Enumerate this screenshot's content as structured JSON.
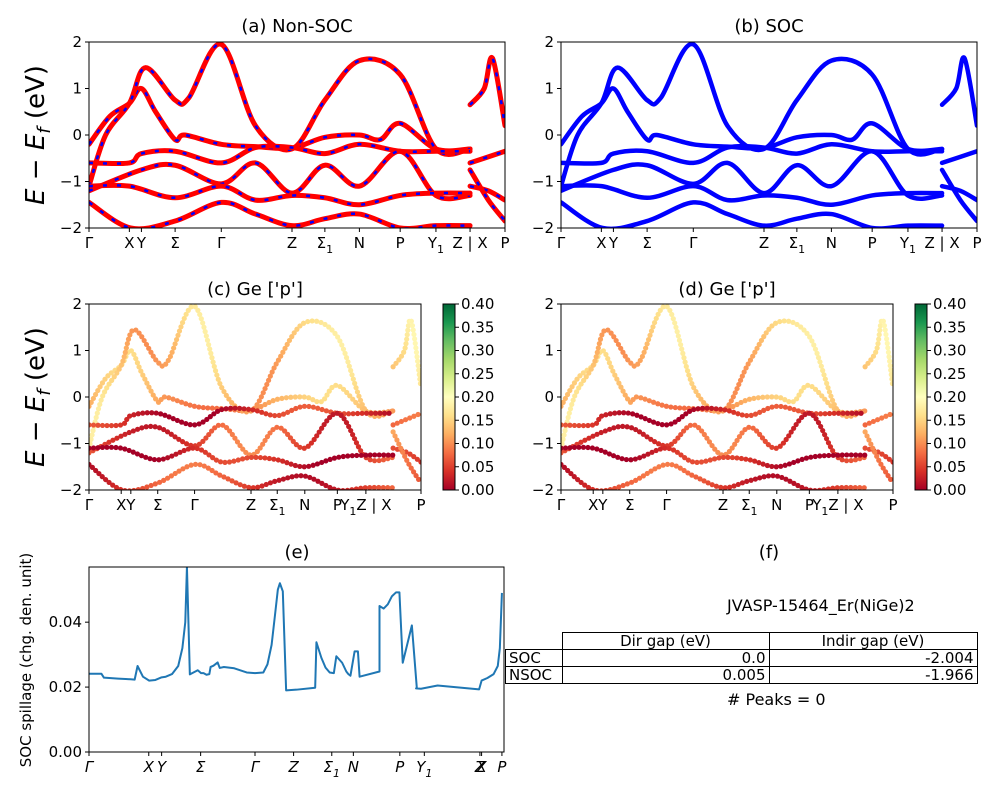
{
  "figure": {
    "ylabel_band": "E − E_f (eV)",
    "kpath_labels": [
      "Γ",
      "X",
      "Y",
      "Σ",
      "Γ",
      "Z",
      "Σ1",
      "N",
      "P",
      "Y1",
      "Z | X",
      "P"
    ],
    "colors": {
      "red": "#ff0000",
      "blue": "#0000ff",
      "line_e": "#1f77b4"
    }
  },
  "chart_data": [
    {
      "id": "a",
      "type": "line",
      "title": "(a) Non-SOC",
      "ylabel": "E − E_f (eV)",
      "ylim": [
        -2,
        2
      ],
      "yticks": [
        -2,
        -1,
        0,
        1,
        2
      ],
      "xticks": [
        {
          "label": "Γ",
          "pos": 0.0
        },
        {
          "label": "X",
          "pos": 0.097
        },
        {
          "label": "Y",
          "pos": 0.126
        },
        {
          "label": "Σ",
          "pos": 0.207
        },
        {
          "label": "Γ",
          "pos": 0.318
        },
        {
          "label": "Z",
          "pos": 0.488
        },
        {
          "label": "Σ1",
          "pos": 0.567
        },
        {
          "label": "N",
          "pos": 0.65
        },
        {
          "label": "P",
          "pos": 0.748
        },
        {
          "label": "Y1",
          "pos": 0.834
        },
        {
          "label": "Z | X",
          "pos": 0.916
        },
        {
          "label": "P",
          "pos": 1.0
        }
      ],
      "style": "red solid with blue dashes",
      "series": [
        {
          "name": "band1",
          "x": [
            0,
            0.05,
            0.097,
            0.126,
            0.16,
            0.207,
            0.23,
            0.318,
            0.4,
            0.488,
            0.567,
            0.65,
            0.7,
            0.748,
            0.834,
            0.916
          ],
          "y": [
            -0.2,
            0.4,
            0.68,
            1.0,
            0.5,
            -0.1,
            0.0,
            -0.2,
            -0.25,
            -0.28,
            -0.05,
            0.0,
            -0.1,
            0.25,
            -0.3,
            -0.3
          ]
        },
        {
          "name": "band2",
          "x": [
            0,
            0.04,
            0.097,
            0.136,
            0.207,
            0.24,
            0.318,
            0.4,
            0.488,
            0.567,
            0.65,
            0.748,
            0.834,
            0.916
          ],
          "y": [
            -1.1,
            0.0,
            0.68,
            1.45,
            0.75,
            0.8,
            1.95,
            0.2,
            -0.3,
            0.75,
            1.6,
            1.3,
            -0.3,
            -0.3
          ]
        },
        {
          "name": "band3",
          "x": [
            0,
            0.097,
            0.126,
            0.207,
            0.318,
            0.4,
            0.488,
            0.567,
            0.65,
            0.748,
            0.834,
            0.916
          ],
          "y": [
            -0.6,
            -0.6,
            -0.4,
            -0.35,
            -0.6,
            -0.27,
            -0.27,
            -0.4,
            -0.2,
            -0.35,
            -0.35,
            -0.35
          ]
        },
        {
          "name": "band4",
          "x": [
            0,
            0.126,
            0.207,
            0.318,
            0.4,
            0.488,
            0.567,
            0.65,
            0.748,
            0.834,
            0.916
          ],
          "y": [
            -1.2,
            -0.75,
            -0.65,
            -1.05,
            -0.6,
            -1.25,
            -0.65,
            -1.1,
            -0.35,
            -1.3,
            -1.3
          ]
        },
        {
          "name": "band5",
          "x": [
            0,
            0.097,
            0.207,
            0.318,
            0.4,
            0.488,
            0.567,
            0.65,
            0.748,
            0.834,
            0.916
          ],
          "y": [
            -1.1,
            -1.1,
            -1.35,
            -1.1,
            -1.4,
            -1.3,
            -1.35,
            -1.5,
            -1.3,
            -1.25,
            -1.25
          ]
        },
        {
          "name": "band6",
          "x": [
            0,
            0.1,
            0.207,
            0.318,
            0.4,
            0.488,
            0.567,
            0.65,
            0.748,
            0.834,
            0.916
          ],
          "y": [
            -1.45,
            -2.0,
            -1.85,
            -1.45,
            -1.7,
            -1.95,
            -1.8,
            -1.7,
            -2.0,
            -1.95,
            -1.95
          ]
        },
        {
          "name": "band7",
          "x": [
            0.916,
            0.95,
            0.97,
            1.0
          ],
          "y": [
            0.65,
            1.0,
            1.65,
            0.2
          ]
        },
        {
          "name": "band8",
          "x": [
            0.916,
            1.0
          ],
          "y": [
            -0.6,
            -0.35
          ]
        },
        {
          "name": "band9",
          "x": [
            0.916,
            0.96,
            1.0
          ],
          "y": [
            -1.1,
            -1.2,
            -1.4
          ]
        },
        {
          "name": "band10",
          "x": [
            0.916,
            0.96,
            1.0
          ],
          "y": [
            -0.75,
            -1.4,
            -1.85
          ]
        }
      ]
    },
    {
      "id": "b",
      "type": "line",
      "title": "(b) SOC",
      "ylim": [
        -2,
        2
      ],
      "yticks": [
        -2,
        -1,
        0,
        1,
        2
      ],
      "style": "blue solid",
      "same_kpath_as": "a"
    },
    {
      "id": "c",
      "type": "scatter",
      "title": "(c)  Ge ['p']",
      "ylabel": "E − E_f (eV)",
      "ylim": [
        -2,
        2
      ],
      "yticks": [
        -2,
        -1,
        0,
        1,
        2
      ],
      "xticks": [
        {
          "label": "Γ",
          "pos": 0.0
        },
        {
          "label": "X",
          "pos": 0.097
        },
        {
          "label": "Y",
          "pos": 0.126
        },
        {
          "label": "Σ",
          "pos": 0.207
        },
        {
          "label": "Γ",
          "pos": 0.318
        },
        {
          "label": "Z",
          "pos": 0.488
        },
        {
          "label": "Σ1",
          "pos": 0.567
        },
        {
          "label": "N",
          "pos": 0.65
        },
        {
          "label": "P",
          "pos": 0.748
        },
        {
          "label": "Y1Z | X",
          "pos": 0.834
        },
        {
          "label": "P",
          "pos": 1.0
        }
      ],
      "colorbar": {
        "cmap": "RdYlGn",
        "range": [
          0.0,
          0.4
        ],
        "ticks": [
          "0.00",
          "0.05",
          "0.10",
          "0.15",
          "0.20",
          "0.25",
          "0.30",
          "0.35",
          "0.40"
        ]
      }
    },
    {
      "id": "d",
      "type": "scatter",
      "title": "(d) Ge ['p']",
      "ylim": [
        -2,
        2
      ],
      "yticks": [
        -2,
        -1,
        0,
        1,
        2
      ],
      "colorbar": {
        "cmap": "RdYlGn",
        "range": [
          0.0,
          0.4
        ],
        "ticks": [
          "0.00",
          "0.05",
          "0.10",
          "0.15",
          "0.20",
          "0.25",
          "0.30",
          "0.35",
          "0.40"
        ]
      }
    },
    {
      "id": "e",
      "type": "line",
      "title": "(e)",
      "ylabel": "SOC spillage (chg. den. unit)",
      "ylim": [
        0.0,
        0.057
      ],
      "yticks": [
        "0.00",
        "0.02",
        "0.04"
      ],
      "xticks": [
        {
          "label": "Γ",
          "pos": 0.0
        },
        {
          "label": "X",
          "pos": 0.144
        },
        {
          "label": "Y",
          "pos": 0.175
        },
        {
          "label": "Σ",
          "pos": 0.269
        },
        {
          "label": "Γ",
          "pos": 0.4
        },
        {
          "label": "Z",
          "pos": 0.493
        },
        {
          "label": "Σ1",
          "pos": 0.585
        },
        {
          "label": "N",
          "pos": 0.637
        },
        {
          "label": "P",
          "pos": 0.749
        },
        {
          "label": "Y1",
          "pos": 0.808
        },
        {
          "label": "Z",
          "pos": 0.942
        },
        {
          "label": "X",
          "pos": 0.946
        },
        {
          "label": "P",
          "pos": 0.995
        }
      ],
      "series": [
        {
          "name": "spillage",
          "x": [
            0.0,
            0.03,
            0.036,
            0.07,
            0.1,
            0.11,
            0.117,
            0.13,
            0.145,
            0.16,
            0.175,
            0.185,
            0.2,
            0.215,
            0.225,
            0.232,
            0.236,
            0.243,
            0.262,
            0.27,
            0.276,
            0.283,
            0.29,
            0.293,
            0.3,
            0.31,
            0.315,
            0.325,
            0.35,
            0.38,
            0.4,
            0.42,
            0.43,
            0.44,
            0.448,
            0.455,
            0.46,
            0.467,
            0.475,
            0.5,
            0.545,
            0.548,
            0.56,
            0.57,
            0.58,
            0.59,
            0.596,
            0.61,
            0.62,
            0.625,
            0.63,
            0.64,
            0.648,
            0.652,
            0.7,
            0.7,
            0.71,
            0.72,
            0.73,
            0.74,
            0.748,
            0.756,
            0.778,
            0.79,
            0.788,
            0.8,
            0.84,
            0.94,
            0.946,
            0.96,
            0.975,
            0.985,
            0.99,
            0.995
          ],
          "y": [
            0.0241,
            0.0241,
            0.0229,
            0.0226,
            0.0224,
            0.0223,
            0.0265,
            0.0232,
            0.022,
            0.0222,
            0.023,
            0.0232,
            0.024,
            0.0265,
            0.032,
            0.04,
            0.057,
            0.0239,
            0.0252,
            0.0243,
            0.0243,
            0.0238,
            0.024,
            0.0262,
            0.0266,
            0.0276,
            0.0259,
            0.0262,
            0.0258,
            0.0245,
            0.0243,
            0.0245,
            0.027,
            0.033,
            0.042,
            0.05,
            0.052,
            0.0495,
            0.019,
            0.0192,
            0.0198,
            0.0338,
            0.029,
            0.026,
            0.0245,
            0.0243,
            0.0295,
            0.0275,
            0.0248,
            0.024,
            0.0235,
            0.031,
            0.031,
            0.0232,
            0.0248,
            0.045,
            0.0442,
            0.0455,
            0.048,
            0.0492,
            0.0492,
            0.0275,
            0.039,
            0.0196,
            0.0196,
            0.0195,
            0.0205,
            0.0193,
            0.022,
            0.0228,
            0.024,
            0.0265,
            0.032,
            0.049
          ]
        }
      ]
    }
  ],
  "panel_f": {
    "title": "(f)",
    "jid": "JVASP-15464_Er(NiGe)2",
    "table": {
      "columns": [
        "",
        "Dir gap (eV)",
        "Indir gap (eV)"
      ],
      "rows": [
        {
          "label": "SOC",
          "dir": "0.0",
          "indir": "-2.004"
        },
        {
          "label": "NSOC",
          "dir": "0.005",
          "indir": "-1.966"
        }
      ]
    },
    "peaks": "# Peaks = 0"
  }
}
